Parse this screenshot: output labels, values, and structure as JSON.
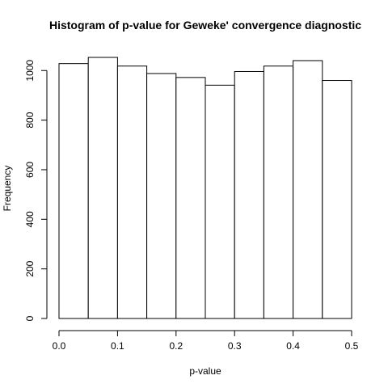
{
  "chart_data": {
    "type": "bar",
    "title": "Histogram of p-value for Geweke' convergence diagnostic",
    "xlabel": "p-value",
    "ylabel": "Frequency",
    "bin_edges": [
      0.0,
      0.05,
      0.1,
      0.15,
      0.2,
      0.25,
      0.3,
      0.35,
      0.4,
      0.45,
      0.5
    ],
    "values": [
      1028,
      1053,
      1018,
      988,
      972,
      941,
      996,
      1018,
      1040,
      960
    ],
    "xlim": [
      0.0,
      0.5
    ],
    "ylim": [
      0,
      1053
    ],
    "x_ticks": [
      0.0,
      0.1,
      0.2,
      0.3,
      0.4,
      0.5
    ],
    "x_tick_labels": [
      "0.0",
      "0.1",
      "0.2",
      "0.3",
      "0.4",
      "0.5"
    ],
    "y_ticks": [
      0,
      200,
      400,
      600,
      800,
      1000
    ],
    "y_tick_labels": [
      "0",
      "200",
      "400",
      "600",
      "800",
      "1000"
    ],
    "grid": false,
    "legend": "none",
    "bar_fill": "#ffffff",
    "bar_stroke": "#000000"
  }
}
